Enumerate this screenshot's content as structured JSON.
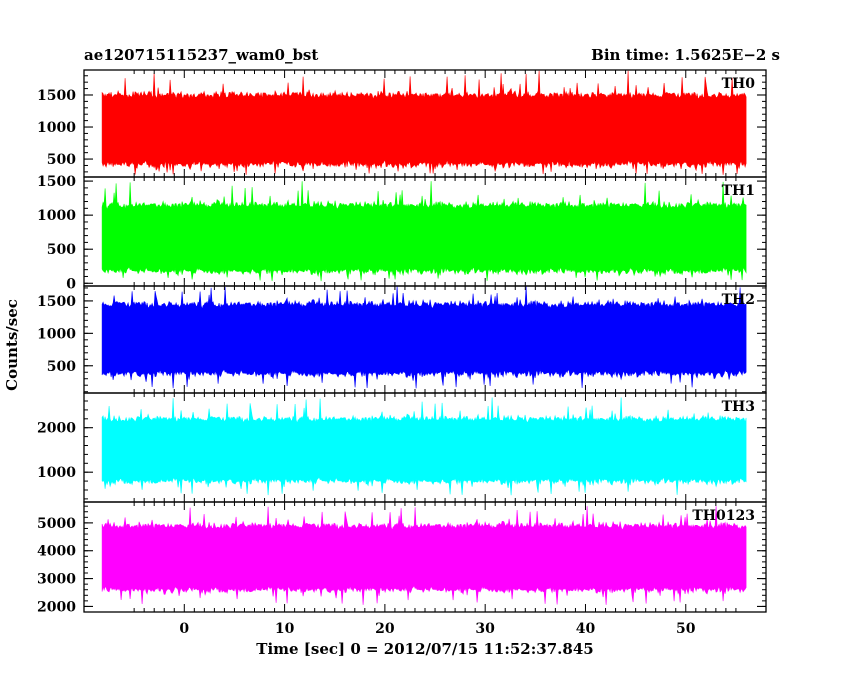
{
  "header": {
    "title": "ae120715115237_wam0_bst",
    "bin_time": "Bin time: 1.5625E−2 s"
  },
  "axes": {
    "xlabel": "Time [sec] 0 = 2012/07/15 11:52:37.845",
    "ylabel": "Counts/sec"
  },
  "chart_data": {
    "type": "line",
    "title": "ae120715115237_wam0_bst",
    "subtitle": "Bin time: 1.5625E−2 s",
    "xlabel": "Time [sec] 0 = 2012/07/15 11:52:37.845",
    "ylabel": "Counts/sec",
    "x_range": [
      -10,
      58
    ],
    "data_x_range": [
      -8.2,
      56.1
    ],
    "x_ticks": [
      0,
      10,
      20,
      30,
      40,
      50
    ],
    "x_tick_labels": [
      "0",
      "10",
      "20",
      "30",
      "40",
      "50"
    ],
    "grid": false,
    "panels": [
      {
        "name": "TH0",
        "color": "#ff0000",
        "ylim": [
          220,
          1890
        ],
        "y_ticks": [
          500,
          1000,
          1500
        ],
        "y_tick_labels": [
          "500",
          "1000",
          "1500"
        ],
        "baseline": 950,
        "typical_min": 420,
        "typical_max": 1500,
        "extreme_min": 250,
        "extreme_max": 1890
      },
      {
        "name": "TH1",
        "color": "#00ff00",
        "ylim": [
          -40,
          1560
        ],
        "y_ticks": [
          0,
          500,
          1000,
          1500
        ],
        "y_tick_labels": [
          "0",
          "500",
          "1000",
          "1500"
        ],
        "baseline": 650,
        "typical_min": 180,
        "typical_max": 1150,
        "extreme_min": 30,
        "extreme_max": 1500
      },
      {
        "name": "TH2",
        "color": "#0000ff",
        "ylim": [
          80,
          1730
        ],
        "y_ticks": [
          500,
          1000,
          1500
        ],
        "y_tick_labels": [
          "500",
          "1000",
          "1500"
        ],
        "baseline": 900,
        "typical_min": 380,
        "typical_max": 1450,
        "extreme_min": 150,
        "extreme_max": 1730
      },
      {
        "name": "TH3",
        "color": "#00ffff",
        "ylim": [
          330,
          2780
        ],
        "y_ticks": [
          1000,
          2000
        ],
        "y_tick_labels": [
          "1000",
          "2000"
        ],
        "baseline": 1500,
        "typical_min": 800,
        "typical_max": 2200,
        "extreme_min": 480,
        "extreme_max": 2680
      },
      {
        "name": "TH0123",
        "color": "#ff00ff",
        "ylim": [
          1800,
          5750
        ],
        "y_ticks": [
          2000,
          3000,
          4000,
          5000
        ],
        "y_tick_labels": [
          "2000",
          "3000",
          "4000",
          "5000"
        ],
        "baseline": 3700,
        "typical_min": 2600,
        "typical_max": 4900,
        "extreme_min": 2050,
        "extreme_max": 5600
      }
    ]
  }
}
